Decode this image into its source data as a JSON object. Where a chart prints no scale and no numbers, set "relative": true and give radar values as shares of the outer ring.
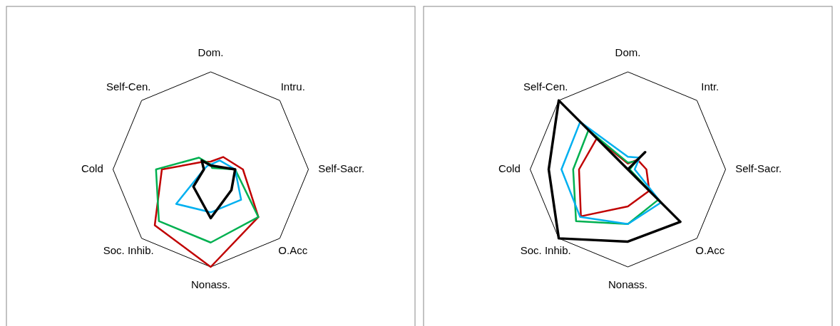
{
  "chart_data": [
    {
      "type": "radar",
      "relative": true,
      "categories": [
        "Dom.",
        "Intru.",
        "Self-Sacr.",
        "O.Acc",
        "Nonass.",
        "Soc. Inhib.",
        "Cold",
        "Self-Cen."
      ],
      "series": [
        {
          "color": "#c00000",
          "values": [
            0.08,
            0.18,
            0.33,
            0.69,
            1.0,
            0.81,
            0.5,
            0.11
          ]
        },
        {
          "color": "#00b050",
          "values": [
            0.05,
            0.02,
            0.25,
            0.69,
            0.75,
            0.75,
            0.56,
            0.17
          ]
        },
        {
          "color": "#00b0f0",
          "values": [
            0.05,
            0.13,
            0.25,
            0.44,
            0.44,
            0.5,
            0.07,
            0.05
          ]
        },
        {
          "color": "#000000",
          "values": [
            0.04,
            0.05,
            0.25,
            0.3,
            0.5,
            0.25,
            0.07,
            0.13
          ]
        }
      ]
    },
    {
      "type": "radar",
      "relative": true,
      "categories": [
        "Dom.",
        "Intr.",
        "Self-Sacr.",
        "O.Acc",
        "Nonass.",
        "Soc. Inhib.",
        "Cold",
        "Self-Cen."
      ],
      "series": [
        {
          "color": "#c00000",
          "values": [
            0.06,
            0.14,
            0.19,
            0.31,
            0.38,
            0.68,
            0.5,
            0.45
          ]
        },
        {
          "color": "#00b050",
          "values": [
            0.07,
            0.12,
            0.02,
            0.44,
            0.56,
            0.75,
            0.56,
            0.57
          ]
        },
        {
          "color": "#00b0f0",
          "values": [
            0.13,
            0.17,
            0.07,
            0.48,
            0.56,
            0.69,
            0.68,
            0.69
          ]
        },
        {
          "color": "#000000",
          "values": [
            0,
            0.25,
            0,
            0.76,
            0.74,
            1.0,
            0.81,
            1.0
          ]
        }
      ]
    }
  ]
}
